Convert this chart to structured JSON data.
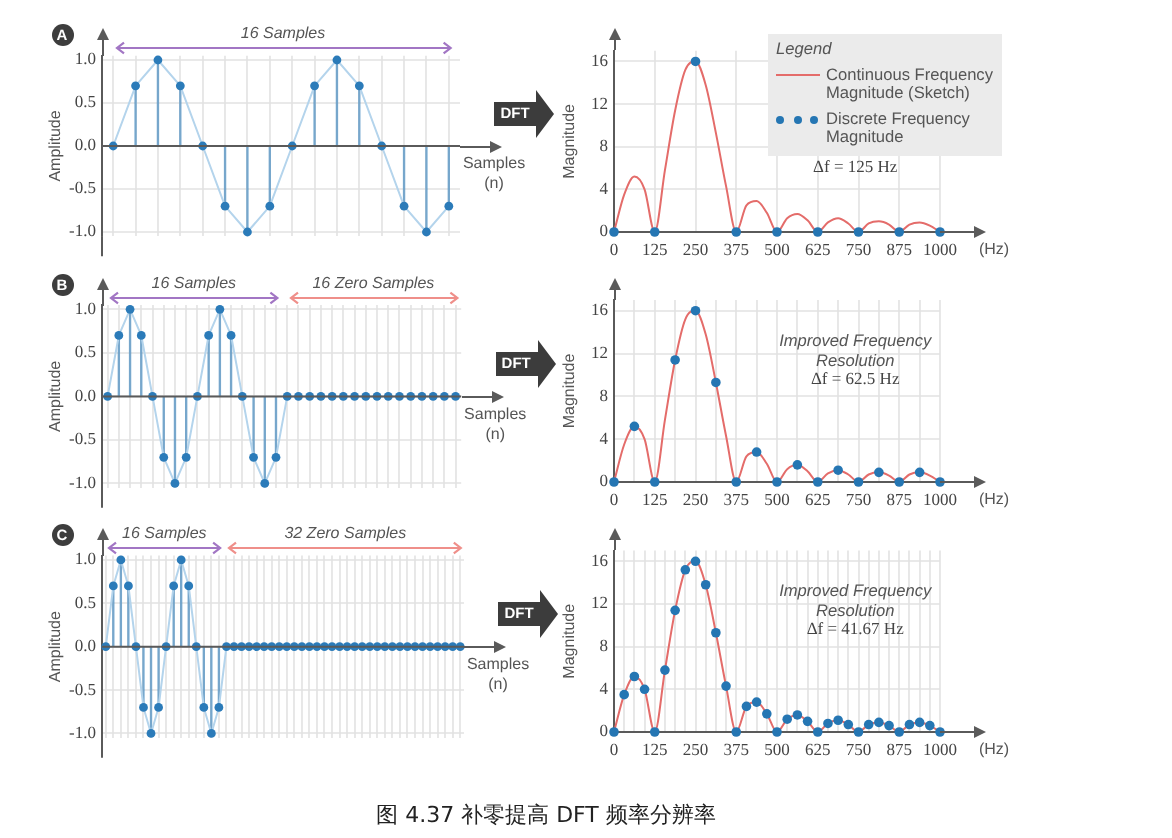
{
  "chart_data": [
    {
      "type": "lollipop",
      "title": "A",
      "xlabel": "Samples (n)",
      "ylabel": "Amplitude",
      "categories": [
        null,
        null,
        null,
        null,
        null,
        null,
        null,
        null,
        null,
        null,
        null,
        null,
        null,
        null,
        null,
        null
      ],
      "series": [
        {
          "type": "line",
          "color": "#b4d4ec",
          "values": [
            0,
            0.7,
            1,
            0.7,
            0,
            -0.7,
            -1,
            -0.7,
            0,
            0.7,
            1,
            0.7,
            0,
            -0.7,
            -1,
            -0.7
          ]
        },
        {
          "color": "#2b7bb9",
          "marker": "circle",
          "values": [
            0,
            0.7,
            1,
            0.7,
            0,
            -0.7,
            -1,
            -0.7,
            0,
            0.7,
            1,
            0.7,
            0,
            -0.7,
            -1,
            -0.7
          ]
        }
      ],
      "ylim": [
        -1.05,
        1.05
      ],
      "yticks": [
        {
          "value": -1,
          "label": "-1.0"
        },
        -0.5,
        {
          "value": 0,
          "label": "0.0"
        },
        0.5,
        {
          "value": 1,
          "label": "1.0"
        }
      ],
      "grid": true,
      "tick_labels": "y",
      "annotations": [
        "16 Samples",
        "DFT"
      ]
    },
    {
      "type": "line",
      "xlabel": "(Hz)",
      "ylabel": "Magnitude",
      "legend": "top right",
      "legend_title": "Legend",
      "series": [
        {
          "name": "Continuous Frequency Magnitude (Sketch)",
          "type": "line",
          "color": "#e46c6a",
          "x": [
            0,
            31.25,
            62.5,
            93.75,
            125,
            156.25,
            187.5,
            218.75,
            250,
            281.25,
            312.5,
            343.75,
            375,
            406.25,
            437.5,
            468.75,
            500,
            531.25,
            562.5,
            593.75,
            625,
            656.25,
            687.5,
            718.75,
            750,
            781.25,
            812.5,
            843.75,
            875,
            906.25,
            937.5,
            968.75,
            1000
          ],
          "values": [
            0,
            3.5,
            5.2,
            4,
            0,
            5.8,
            11.4,
            15.2,
            16,
            13.8,
            9.3,
            4.3,
            0,
            2.5,
            2.9,
            1.8,
            0,
            1.3,
            1.7,
            1.1,
            0,
            0.9,
            1.3,
            0.8,
            0,
            0.8,
            1,
            0.7,
            0,
            0.7,
            0.9,
            0.6,
            0
          ]
        },
        {
          "name": "Discrete Frequency Magnitude",
          "type": "scatter",
          "color": "#2576b3",
          "marker": "circle",
          "x": [
            0,
            125,
            250,
            375,
            500,
            625,
            750,
            875,
            1000
          ],
          "values": [
            0,
            0,
            16,
            0,
            0,
            0,
            0,
            0,
            0
          ]
        }
      ],
      "xlim": [
        0,
        1000
      ],
      "xticks": [
        0,
        125,
        250,
        375,
        500,
        625,
        750,
        875,
        1000
      ],
      "ylim": [
        0,
        17
      ],
      "yticks": [
        0,
        4,
        8,
        12,
        16
      ],
      "grid": true,
      "annotations": [
        "Δf = 125 Hz"
      ]
    },
    {
      "type": "lollipop",
      "title": "B",
      "xlabel": "Samples (n)",
      "ylabel": "Amplitude",
      "categories": [
        null,
        null,
        null,
        null,
        null,
        null,
        null,
        null,
        null,
        null,
        null,
        null,
        null,
        null,
        null,
        null,
        null,
        null,
        null,
        null,
        null,
        null,
        null,
        null,
        null,
        null,
        null,
        null,
        null,
        null,
        null,
        null
      ],
      "series": [
        {
          "type": "line",
          "color": "#b4d4ec",
          "values": [
            0,
            0.7,
            1,
            0.7,
            0,
            -0.7,
            -1,
            -0.7,
            0,
            0.7,
            1,
            0.7,
            0,
            -0.7,
            -1,
            -0.7,
            0,
            0,
            0,
            0,
            0,
            0,
            0,
            0,
            0,
            0,
            0,
            0,
            0,
            0,
            0,
            0
          ]
        },
        {
          "color": "#2b7bb9",
          "marker": "circle",
          "values": [
            0,
            0.7,
            1,
            0.7,
            0,
            -0.7,
            -1,
            -0.7,
            0,
            0.7,
            1,
            0.7,
            0,
            -0.7,
            -1,
            -0.7,
            null,
            null,
            null,
            null,
            null,
            null,
            null,
            null,
            null,
            null,
            null,
            null,
            null,
            null,
            null,
            null
          ]
        },
        {
          "color": "#2b7bb9",
          "marker": "circle",
          "values": [
            null,
            null,
            null,
            null,
            null,
            null,
            null,
            null,
            null,
            null,
            null,
            null,
            null,
            null,
            null,
            null,
            0,
            0,
            0,
            0,
            0,
            0,
            0,
            0,
            0,
            0,
            0,
            0,
            0,
            0,
            0,
            0
          ]
        }
      ],
      "ylim": [
        -1.05,
        1.05
      ],
      "yticks": [
        {
          "value": -1,
          "label": "-1.0"
        },
        -0.5,
        {
          "value": 0,
          "label": "0.0"
        },
        0.5,
        {
          "value": 1,
          "label": "1.0"
        }
      ],
      "grid": true,
      "tick_labels": "y",
      "annotations": [
        "16 Samples",
        "16 Zero Samples",
        "DFT"
      ]
    },
    {
      "type": "line",
      "xlabel": "(Hz)",
      "ylabel": "Magnitude",
      "series": [
        {
          "type": "line",
          "color": "#e46c6a",
          "x": [
            0,
            31.25,
            62.5,
            93.75,
            125,
            156.25,
            187.5,
            218.75,
            250,
            281.25,
            312.5,
            343.75,
            375,
            406.25,
            437.5,
            468.75,
            500,
            531.25,
            562.5,
            593.75,
            625,
            656.25,
            687.5,
            718.75,
            750,
            781.25,
            812.5,
            843.75,
            875,
            906.25,
            937.5,
            968.75,
            1000
          ],
          "values": [
            0,
            3.5,
            5.2,
            4,
            0,
            5.8,
            11.4,
            15.2,
            16,
            13.8,
            9.3,
            4.3,
            0,
            2.4,
            2.8,
            1.7,
            0,
            1.2,
            1.6,
            1,
            0,
            0.8,
            1.1,
            0.7,
            0,
            0.7,
            0.9,
            0.6,
            0,
            0.7,
            0.9,
            0.6,
            0
          ]
        },
        {
          "type": "scatter",
          "color": "#2576b3",
          "marker": "circle",
          "x": [
            0,
            62.5,
            125,
            187.5,
            250,
            312.5,
            375,
            437.5,
            500,
            562.5,
            625,
            687.5,
            750,
            812.5,
            875,
            937.5,
            1000
          ],
          "values": [
            0,
            5.2,
            0,
            11.4,
            16,
            9.3,
            0,
            2.8,
            0,
            1.6,
            0,
            1.1,
            0,
            0.9,
            0,
            0.9,
            0
          ]
        }
      ],
      "xlim": [
        0,
        1000
      ],
      "xticks": [
        0,
        {
          "value": 62.5,
          "label": null
        },
        125,
        {
          "value": 187.5,
          "label": null
        },
        250,
        {
          "value": 312.5,
          "label": null
        },
        375,
        {
          "value": 437.5,
          "label": null
        },
        500,
        {
          "value": 562.5,
          "label": null
        },
        625,
        {
          "value": 687.5,
          "label": null
        },
        750,
        {
          "value": 812.5,
          "label": null
        },
        875,
        {
          "value": 937.5,
          "label": null
        },
        1000
      ],
      "ylim": [
        0,
        17
      ],
      "yticks": [
        0,
        4,
        8,
        12,
        16
      ],
      "grid": true,
      "annotations": [
        "Improved Frequency Resolution",
        "Δf = 62.5 Hz"
      ]
    },
    {
      "type": "lollipop",
      "title": "C",
      "xlabel": "Samples (n)",
      "ylabel": "Amplitude",
      "categories": [
        null,
        null,
        null,
        null,
        null,
        null,
        null,
        null,
        null,
        null,
        null,
        null,
        null,
        null,
        null,
        null,
        null,
        null,
        null,
        null,
        null,
        null,
        null,
        null,
        null,
        null,
        null,
        null,
        null,
        null,
        null,
        null,
        null,
        null,
        null,
        null,
        null,
        null,
        null,
        null,
        null,
        null,
        null,
        null,
        null,
        null,
        null,
        null
      ],
      "series": [
        {
          "type": "line",
          "color": "#b4d4ec",
          "values": [
            0,
            0.7,
            1,
            0.7,
            0,
            -0.7,
            -1,
            -0.7,
            0,
            0.7,
            1,
            0.7,
            0,
            -0.7,
            -1,
            -0.7,
            0,
            0,
            0,
            0,
            0,
            0,
            0,
            0,
            0,
            0,
            0,
            0,
            0,
            0,
            0,
            0,
            0,
            0,
            0,
            0,
            0,
            0,
            0,
            0,
            0,
            0,
            0,
            0,
            0,
            0,
            0,
            0
          ]
        },
        {
          "color": "#2b7bb9",
          "marker": "circle",
          "values": [
            0,
            0.7,
            1,
            0.7,
            0,
            -0.7,
            -1,
            -0.7,
            0,
            0.7,
            1,
            0.7,
            0,
            -0.7,
            -1,
            -0.7,
            null,
            null,
            null,
            null,
            null,
            null,
            null,
            null,
            null,
            null,
            null,
            null,
            null,
            null,
            null,
            null,
            null,
            null,
            null,
            null,
            null,
            null,
            null,
            null,
            null,
            null,
            null,
            null,
            null,
            null,
            null,
            null
          ]
        },
        {
          "color": "#2b7bb9",
          "marker": "circle",
          "values": [
            null,
            null,
            null,
            null,
            null,
            null,
            null,
            null,
            null,
            null,
            null,
            null,
            null,
            null,
            null,
            null,
            0,
            0,
            0,
            0,
            0,
            0,
            0,
            0,
            0,
            0,
            0,
            0,
            0,
            0,
            0,
            0,
            0,
            0,
            0,
            0,
            0,
            0,
            0,
            0,
            0,
            0,
            0,
            0,
            0,
            0,
            0,
            0
          ]
        }
      ],
      "ylim": [
        -1.05,
        1.05
      ],
      "yticks": [
        {
          "value": -1,
          "label": "-1.0"
        },
        -0.5,
        {
          "value": 0,
          "label": "0.0"
        },
        0.5,
        {
          "value": 1,
          "label": "1.0"
        }
      ],
      "grid": true,
      "tick_labels": "y",
      "annotations": [
        "16 Samples",
        "32 Zero Samples",
        "DFT"
      ]
    },
    {
      "type": "line",
      "xlabel": "(Hz)",
      "ylabel": "Magnitude",
      "series": [
        {
          "type": "line",
          "color": "#e46c6a",
          "x": [
            0,
            31.25,
            62.5,
            93.75,
            125,
            156.25,
            187.5,
            218.75,
            250,
            281.25,
            312.5,
            343.75,
            375,
            406.25,
            437.5,
            468.75,
            500,
            531.25,
            562.5,
            593.75,
            625,
            656.25,
            687.5,
            718.75,
            750,
            781.25,
            812.5,
            843.75,
            875,
            906.25,
            937.5,
            968.75,
            1000
          ],
          "values": [
            0,
            3.5,
            5.2,
            4,
            0,
            5.8,
            11.4,
            15.2,
            16,
            13.8,
            9.3,
            4.3,
            0,
            2.4,
            2.8,
            1.7,
            0,
            1.2,
            1.6,
            1,
            0,
            0.8,
            1.1,
            0.7,
            0,
            0.7,
            0.9,
            0.6,
            0,
            0.7,
            0.9,
            0.6,
            0
          ]
        },
        {
          "type": "scatter",
          "color": "#2576b3",
          "marker": "circle",
          "x": [
            0,
            31.25,
            62.5,
            93.75,
            125,
            156.25,
            187.5,
            218.75,
            250,
            281.25,
            312.5,
            343.75,
            375,
            406.25,
            437.5,
            468.75,
            500,
            531.25,
            562.5,
            593.75,
            625,
            656.25,
            687.5,
            718.75,
            750,
            781.25,
            812.5,
            843.75,
            875,
            906.25,
            937.5,
            968.75,
            1000
          ],
          "values": [
            0,
            3.5,
            5.2,
            4,
            0,
            5.8,
            11.4,
            15.2,
            16,
            13.8,
            9.3,
            4.3,
            0,
            2.4,
            2.8,
            1.7,
            0,
            1.2,
            1.6,
            1,
            0,
            0.8,
            1.1,
            0.7,
            0,
            0.7,
            0.9,
            0.6,
            0,
            0.7,
            0.9,
            0.6,
            0
          ]
        }
      ],
      "xlim": [
        0,
        1000
      ],
      "xticks": [
        0,
        {
          "value": 31.25,
          "label": null
        },
        {
          "value": 62.5,
          "label": null
        },
        {
          "value": 93.75,
          "label": null
        },
        125,
        {
          "value": 156.25,
          "label": null
        },
        {
          "value": 187.5,
          "label": null
        },
        {
          "value": 218.75,
          "label": null
        },
        250,
        {
          "value": 281.25,
          "label": null
        },
        {
          "value": 312.5,
          "label": null
        },
        {
          "value": 343.75,
          "label": null
        },
        375,
        {
          "value": 406.25,
          "label": null
        },
        {
          "value": 437.5,
          "label": null
        },
        {
          "value": 468.75,
          "label": null
        },
        500,
        {
          "value": 531.25,
          "label": null
        },
        {
          "value": 562.5,
          "label": null
        },
        {
          "value": 593.75,
          "label": null
        },
        625,
        {
          "value": 656.25,
          "label": null
        },
        {
          "value": 687.5,
          "label": null
        },
        {
          "value": 718.75,
          "label": null
        },
        750,
        {
          "value": 781.25,
          "label": null
        },
        {
          "value": 812.5,
          "label": null
        },
        {
          "value": 843.75,
          "label": null
        },
        875,
        {
          "value": 906.25,
          "label": null
        },
        {
          "value": 937.5,
          "label": null
        },
        {
          "value": 968.75,
          "label": null
        },
        1000
      ],
      "ylim": [
        0,
        17
      ],
      "yticks": [
        0,
        4,
        8,
        12,
        16
      ],
      "grid": true,
      "annotations": [
        "Improved Frequency Resolution",
        "Δf = 41.67 Hz"
      ]
    },
    {
      "type": "other",
      "annotations": [
        "图 4.37 补零提高 DFT 频率分辨率"
      ]
    }
  ]
}
